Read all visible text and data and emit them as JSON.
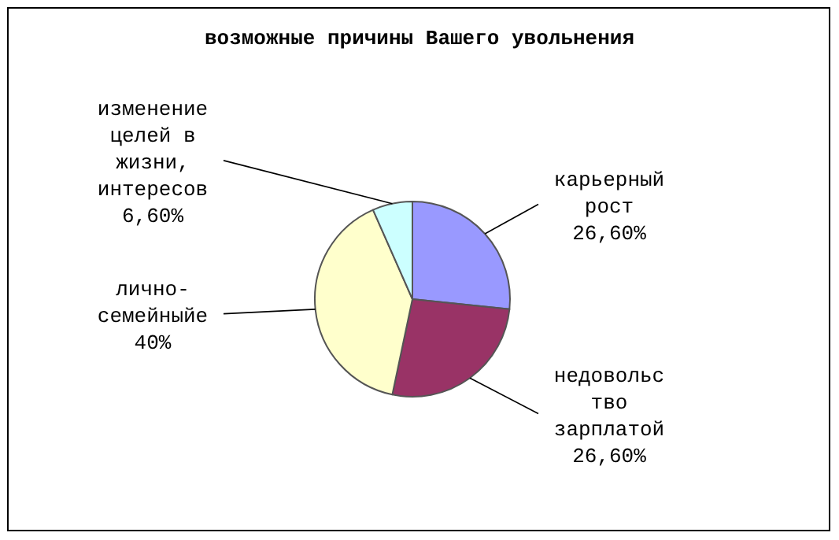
{
  "chart_data": {
    "type": "pie",
    "title": "возможные причины Вашего увольнения",
    "categories": [
      "карьерный рост",
      "недовольство зарплатой",
      "лично-семейныйе",
      "изменение целей в жизни, интересов"
    ],
    "values": [
      26.6,
      26.6,
      40,
      6.6
    ],
    "value_labels": [
      "26,60%",
      "26,60%",
      "40%",
      "6,60%"
    ],
    "colors": [
      "#9999ff",
      "#993366",
      "#ffffcc",
      "#ccffff"
    ]
  }
}
